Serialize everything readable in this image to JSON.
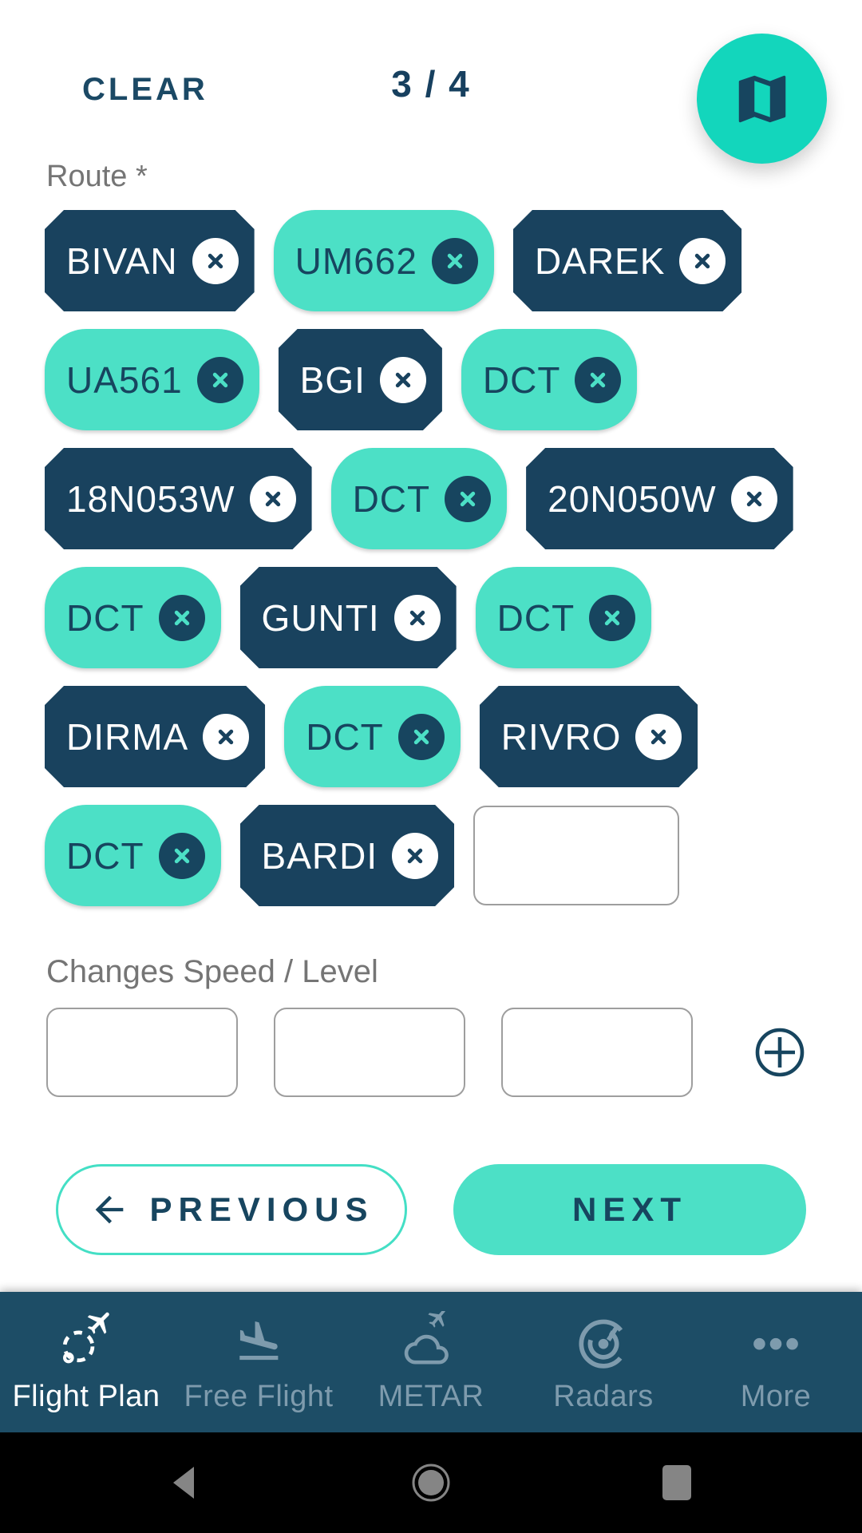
{
  "header": {
    "clear_label": "CLEAR",
    "step_indicator": "3 / 4",
    "map_button_icon": "map-icon"
  },
  "route": {
    "label": "Route *",
    "remove_icon": "remove-waypoint-icon",
    "new_waypoint_input": {
      "value": "",
      "placeholder": ""
    },
    "rows": [
      {
        "chips": [
          {
            "label": "BIVAN",
            "variant": "waypoint"
          },
          {
            "label": "UM662",
            "variant": "airway"
          },
          {
            "label": "DAREK",
            "variant": "waypoint"
          }
        ]
      },
      {
        "chips": [
          {
            "label": "UA561",
            "variant": "airway"
          },
          {
            "label": "BGI",
            "variant": "waypoint"
          },
          {
            "label": "DCT",
            "variant": "airway"
          }
        ]
      },
      {
        "chips": [
          {
            "label": "18N053W",
            "variant": "waypoint"
          },
          {
            "label": "DCT",
            "variant": "airway"
          },
          {
            "label": "20N050W",
            "variant": "waypoint"
          }
        ]
      },
      {
        "chips": [
          {
            "label": "DCT",
            "variant": "airway"
          },
          {
            "label": "GUNTI",
            "variant": "waypoint"
          },
          {
            "label": "DCT",
            "variant": "airway"
          }
        ]
      },
      {
        "chips": [
          {
            "label": "DIRMA",
            "variant": "waypoint"
          },
          {
            "label": "DCT",
            "variant": "airway"
          },
          {
            "label": "RIVRO",
            "variant": "waypoint"
          }
        ]
      },
      {
        "chips": [
          {
            "label": "DCT",
            "variant": "airway"
          },
          {
            "label": "BARDI",
            "variant": "waypoint"
          }
        ],
        "trailing_input": true
      }
    ]
  },
  "changes": {
    "label": "Changes Speed / Level",
    "inputs": [
      {
        "value": "",
        "placeholder": ""
      },
      {
        "value": "",
        "placeholder": ""
      },
      {
        "value": "",
        "placeholder": ""
      }
    ],
    "add_button_icon": "add-icon"
  },
  "actions": {
    "previous_label": "PREVIOUS",
    "previous_icon": "back-arrow-icon",
    "next_label": "NEXT"
  },
  "bottom_nav": {
    "items": [
      {
        "label": "Flight Plan",
        "icon": "flight-plan-icon",
        "active": true
      },
      {
        "label": "Free Flight",
        "icon": "free-flight-icon",
        "active": false
      },
      {
        "label": "METAR",
        "icon": "metar-icon",
        "active": false
      },
      {
        "label": "Radars",
        "icon": "radars-icon",
        "active": false
      },
      {
        "label": "More",
        "icon": "more-icon",
        "active": false
      }
    ]
  },
  "android_nav": {
    "keys": [
      {
        "name": "back",
        "icon": "android-back-icon"
      },
      {
        "name": "home",
        "icon": "android-home-icon"
      },
      {
        "name": "recents",
        "icon": "android-recents-icon"
      }
    ]
  },
  "colors": {
    "navy": "#19425E",
    "text_navy": "#17455F",
    "teal_chip": "#4CE0C6",
    "fab_teal": "#13D6BC",
    "nav_bar_bg": "#1D4D66",
    "nav_inactive": "#7E9BAD",
    "label_gray": "#757575",
    "input_border": "#9E9E9E",
    "android_bar_bg": "#000000",
    "android_icon_gray": "#858585"
  }
}
